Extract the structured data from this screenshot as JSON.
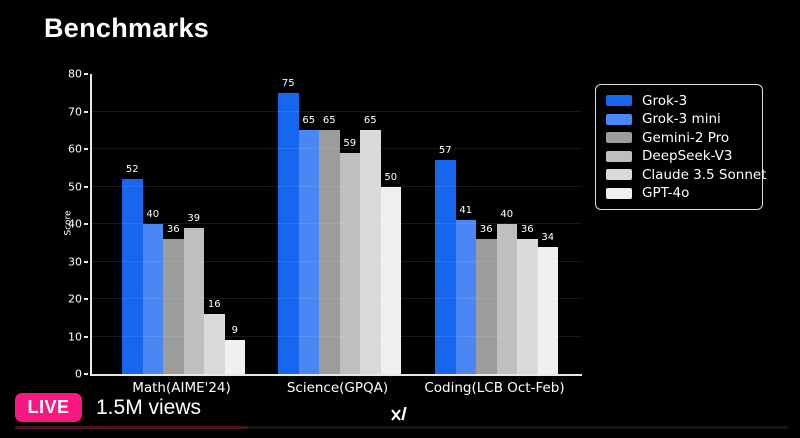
{
  "page": {
    "title": "Benchmarks"
  },
  "overlay": {
    "live_label": "LIVE",
    "views": "1.5M views",
    "badge_color": "#F91880",
    "watermark_icon": "xai-logo"
  },
  "chart_data": {
    "type": "bar",
    "title": "Benchmarks",
    "xlabel": "",
    "ylabel": "Score",
    "ylim": [
      0,
      80
    ],
    "yticks": [
      0,
      10,
      20,
      30,
      40,
      50,
      60,
      70,
      80
    ],
    "grid": true,
    "background": "#000000",
    "legend_position": "upper right",
    "categories": [
      "Math(AIME'24)",
      "Science(GPQA)",
      "Coding(LCB Oct-Feb)"
    ],
    "series": [
      {
        "name": "Grok-3",
        "color": "#1766F0",
        "values": [
          52,
          75,
          57
        ]
      },
      {
        "name": "Grok-3 mini",
        "color": "#4B86F5",
        "values": [
          40,
          65,
          41
        ]
      },
      {
        "name": "Gemini-2 Pro",
        "color": "#9C9C9C",
        "values": [
          36,
          65,
          36
        ]
      },
      {
        "name": "DeepSeek-V3",
        "color": "#BFBFBF",
        "values": [
          39,
          59,
          40
        ]
      },
      {
        "name": "Claude 3.5 Sonnet",
        "color": "#DADADA",
        "values": [
          16,
          65,
          36
        ]
      },
      {
        "name": "GPT-4o",
        "color": "#F0F0F0",
        "values": [
          9,
          50,
          34
        ]
      }
    ]
  }
}
